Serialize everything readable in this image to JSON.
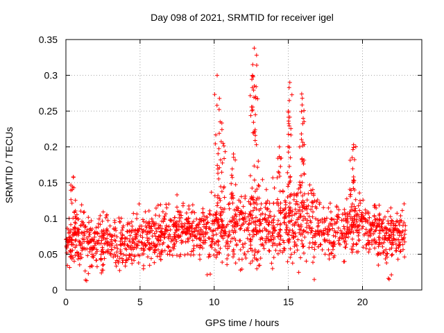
{
  "chart_data": {
    "type": "scatter",
    "title": "Day 098 of 2021, SRMTID for receiver igel",
    "xlabel": "GPS time / hours",
    "ylabel": "SRMTID / TECUs",
    "xlim": [
      0,
      24
    ],
    "ylim": [
      0,
      0.35
    ],
    "x_ticks": [
      0,
      5,
      10,
      15,
      20
    ],
    "x_tick_labels": [
      "0",
      "5",
      "10",
      "15",
      "20"
    ],
    "y_ticks": [
      0,
      0.05,
      0.1,
      0.15,
      0.2,
      0.25,
      0.3,
      0.35
    ],
    "y_tick_labels": [
      "0",
      "0.05",
      "0.1",
      "0.15",
      "0.2",
      "0.25",
      "0.3",
      "0.35"
    ],
    "grid": true,
    "marker": "+",
    "series": [
      {
        "name": "SRMTID",
        "color": "#ff0000",
        "x_range": [
          0,
          22.9
        ],
        "baseline_by_hour": [
          [
            0,
            0.07
          ],
          [
            1,
            0.072
          ],
          [
            2,
            0.065
          ],
          [
            3,
            0.068
          ],
          [
            4,
            0.066
          ],
          [
            5,
            0.07
          ],
          [
            6,
            0.075
          ],
          [
            7,
            0.08
          ],
          [
            8,
            0.085
          ],
          [
            9,
            0.08
          ],
          [
            10,
            0.085
          ],
          [
            11,
            0.08
          ],
          [
            12,
            0.085
          ],
          [
            13,
            0.09
          ],
          [
            14,
            0.095
          ],
          [
            15,
            0.09
          ],
          [
            16,
            0.095
          ],
          [
            17,
            0.085
          ],
          [
            18,
            0.08
          ],
          [
            19,
            0.085
          ],
          [
            20,
            0.095
          ],
          [
            21,
            0.08
          ],
          [
            22,
            0.075
          ],
          [
            22.9,
            0.078
          ]
        ],
        "peaks": [
          {
            "x": 0.5,
            "y": 0.158
          },
          {
            "x": 10.2,
            "y": 0.3
          },
          {
            "x": 10.4,
            "y": 0.235
          },
          {
            "x": 10.6,
            "y": 0.205
          },
          {
            "x": 11.3,
            "y": 0.19
          },
          {
            "x": 12.7,
            "y": 0.338
          },
          {
            "x": 12.6,
            "y": 0.315
          },
          {
            "x": 12.8,
            "y": 0.27
          },
          {
            "x": 14.4,
            "y": 0.2
          },
          {
            "x": 15.1,
            "y": 0.29
          },
          {
            "x": 15.0,
            "y": 0.25
          },
          {
            "x": 15.9,
            "y": 0.274
          },
          {
            "x": 16.0,
            "y": 0.24
          },
          {
            "x": 19.4,
            "y": 0.203
          },
          {
            "x": 19.3,
            "y": 0.185
          },
          {
            "x": 21.8,
            "y": 0.015
          },
          {
            "x": 1.4,
            "y": 0.013
          }
        ]
      }
    ]
  }
}
